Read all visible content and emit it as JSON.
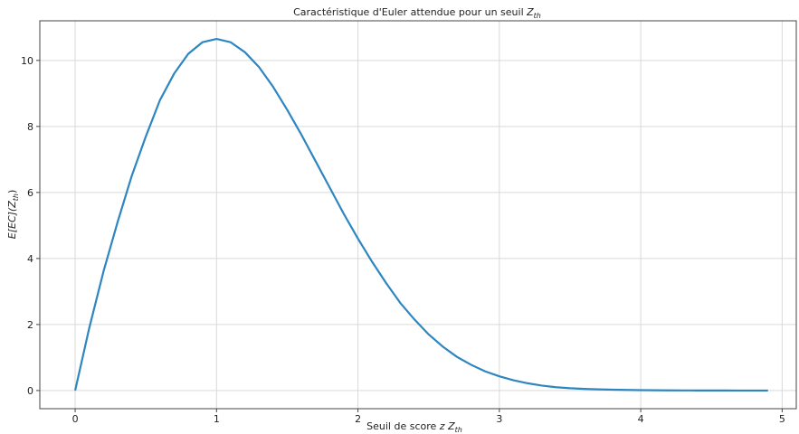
{
  "chart_data": {
    "type": "line",
    "title": "Caractéristique d'Euler attendue pour un seuil Z_th",
    "title_parts": {
      "text": "Caractéristique d'Euler attendue pour un seuil ",
      "math": "Z",
      "sub": "th"
    },
    "xlabel": "Seuil de score z Z_th",
    "xlabel_parts": {
      "text": "Seuil de score ",
      "math": "z Z",
      "sub": "th"
    },
    "ylabel": "E[EC](Z_th)",
    "ylabel_parts": {
      "math": "E[EC](Z",
      "sub": "th",
      "tail": ")"
    },
    "xlim": [
      -0.25,
      5.1
    ],
    "ylim": [
      -0.55,
      11.2
    ],
    "xticks": [
      0,
      1,
      2,
      3,
      4,
      5
    ],
    "yticks": [
      0,
      2,
      4,
      6,
      8,
      10
    ],
    "grid": true,
    "color": "#2e86c1",
    "series": [
      {
        "x": [
          0,
          0.1,
          0.2,
          0.3,
          0.4,
          0.5,
          0.6,
          0.7,
          0.8,
          0.9,
          1.0,
          1.1,
          1.2,
          1.3,
          1.4,
          1.5,
          1.6,
          1.7,
          1.8,
          1.9,
          2.0,
          2.1,
          2.2,
          2.3,
          2.4,
          2.5,
          2.6,
          2.7,
          2.8,
          2.9,
          3.0,
          3.1,
          3.2,
          3.3,
          3.4,
          3.5,
          3.6,
          3.7,
          3.8,
          3.9,
          4.0,
          4.1,
          4.2,
          4.3,
          4.4,
          4.5,
          4.6,
          4.7,
          4.8,
          4.9
        ],
        "values": [
          0.0,
          1.9,
          3.6,
          5.1,
          6.5,
          7.7,
          8.8,
          9.6,
          10.2,
          10.55,
          10.65,
          10.55,
          10.25,
          9.8,
          9.2,
          8.5,
          7.75,
          6.95,
          6.15,
          5.35,
          4.6,
          3.9,
          3.25,
          2.65,
          2.15,
          1.7,
          1.33,
          1.02,
          0.78,
          0.58,
          0.43,
          0.31,
          0.22,
          0.15,
          0.1,
          0.07,
          0.05,
          0.035,
          0.025,
          0.018,
          0.012,
          0.008,
          0.005,
          0.003,
          0.002,
          0.001,
          0.001,
          0.0,
          0.0,
          0.0
        ]
      }
    ]
  }
}
